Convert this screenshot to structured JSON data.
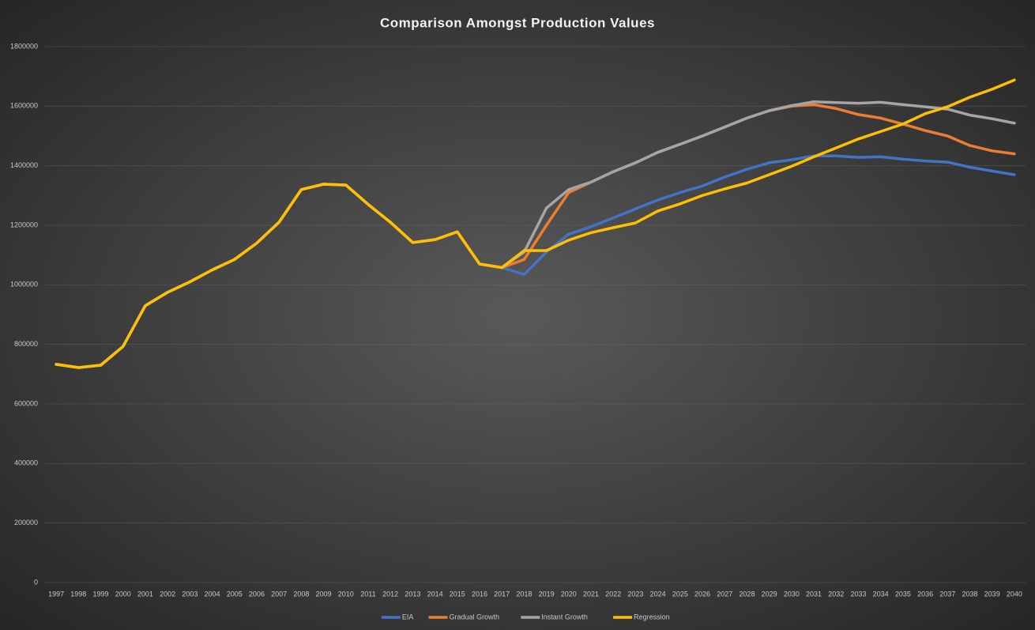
{
  "chart_data": {
    "type": "line",
    "title": "Comparison Amongst Production Values",
    "categories": [
      "1997",
      "1998",
      "1999",
      "2000",
      "2001",
      "2002",
      "2003",
      "2004",
      "2005",
      "2006",
      "2007",
      "2008",
      "2009",
      "2010",
      "2011",
      "2012",
      "2013",
      "2014",
      "2015",
      "2016",
      "2017",
      "2018",
      "2019",
      "2020",
      "2021",
      "2022",
      "2023",
      "2024",
      "2025",
      "2026",
      "2027",
      "2028",
      "2029",
      "2030",
      "2031",
      "2032",
      "2033",
      "2034",
      "2035",
      "2036",
      "2037",
      "2038",
      "2039",
      "2040"
    ],
    "series": [
      {
        "name": "EIA",
        "color": "#4472c4",
        "values": [
          733000,
          722000,
          730000,
          793000,
          930000,
          975000,
          1010000,
          1050000,
          1085000,
          1140000,
          1210000,
          1320000,
          1338000,
          1335000,
          1270000,
          1210000,
          1142000,
          1152000,
          1178000,
          1070000,
          1058000,
          1035000,
          1110000,
          1170000,
          1195000,
          1225000,
          1255000,
          1285000,
          1310000,
          1332000,
          1362000,
          1388000,
          1410000,
          1420000,
          1433000,
          1433000,
          1428000,
          1430000,
          1422000,
          1416000,
          1412000,
          1395000,
          1382000,
          1370000
        ]
      },
      {
        "name": "Gradual Growth",
        "color": "#ed7d31",
        "values": [
          733000,
          722000,
          730000,
          793000,
          930000,
          975000,
          1010000,
          1050000,
          1085000,
          1140000,
          1210000,
          1320000,
          1338000,
          1335000,
          1270000,
          1210000,
          1142000,
          1152000,
          1178000,
          1070000,
          1058000,
          1085000,
          1200000,
          1310000,
          1345000,
          1380000,
          1410000,
          1445000,
          1472000,
          1500000,
          1530000,
          1560000,
          1585000,
          1600000,
          1605000,
          1592000,
          1572000,
          1560000,
          1540000,
          1518000,
          1500000,
          1468000,
          1450000,
          1440000
        ]
      },
      {
        "name": "Instant Growth",
        "color": "#a5a5a5",
        "values": [
          733000,
          722000,
          730000,
          793000,
          930000,
          975000,
          1010000,
          1050000,
          1085000,
          1140000,
          1210000,
          1320000,
          1338000,
          1335000,
          1270000,
          1210000,
          1142000,
          1152000,
          1178000,
          1070000,
          1058000,
          1110000,
          1258000,
          1320000,
          1345000,
          1380000,
          1410000,
          1445000,
          1472000,
          1500000,
          1530000,
          1560000,
          1585000,
          1602000,
          1615000,
          1612000,
          1610000,
          1613000,
          1605000,
          1598000,
          1590000,
          1570000,
          1558000,
          1543000
        ]
      },
      {
        "name": "Regression",
        "color": "#ffc000",
        "values": [
          733000,
          722000,
          730000,
          793000,
          930000,
          975000,
          1010000,
          1050000,
          1085000,
          1140000,
          1210000,
          1320000,
          1338000,
          1335000,
          1270000,
          1210000,
          1142000,
          1152000,
          1178000,
          1070000,
          1058000,
          1115000,
          1115000,
          1150000,
          1175000,
          1192000,
          1208000,
          1248000,
          1272000,
          1300000,
          1322000,
          1342000,
          1370000,
          1398000,
          1430000,
          1460000,
          1490000,
          1515000,
          1540000,
          1575000,
          1598000,
          1630000,
          1657000,
          1688000
        ]
      }
    ],
    "ylim": [
      0,
      1800000
    ],
    "yticks": [
      0,
      200000,
      400000,
      600000,
      800000,
      1000000,
      1200000,
      1400000,
      1600000,
      1800000
    ],
    "grid": true,
    "legend": "bottom"
  }
}
